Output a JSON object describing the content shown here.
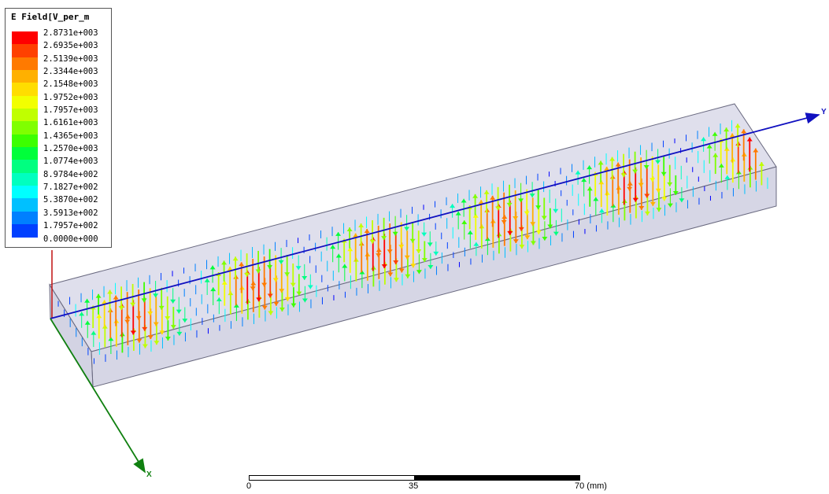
{
  "legend": {
    "title": "E Field[V_per_m",
    "labels": [
      "2.8731e+003",
      "2.6935e+003",
      "2.5139e+003",
      "2.3344e+003",
      "2.1548e+003",
      "1.9752e+003",
      "1.7957e+003",
      "1.6161e+003",
      "1.4365e+003",
      "1.2570e+003",
      "1.0774e+003",
      "8.9784e+002",
      "7.1827e+002",
      "5.3870e+002",
      "3.5913e+002",
      "1.7957e+002",
      "0.0000e+000"
    ],
    "colors": [
      "#ff0000",
      "#ff4000",
      "#ff7a00",
      "#ffb000",
      "#ffdd00",
      "#f2ff00",
      "#c0ff00",
      "#80ff00",
      "#3cff00",
      "#00ff3a",
      "#00ff80",
      "#00ffbf",
      "#00ffff",
      "#00c0ff",
      "#0080ff",
      "#0040ff",
      "#0000ff"
    ]
  },
  "axes": {
    "y_label": "Y",
    "x_label": "X",
    "y_color": "#1010c0",
    "x_color": "#108010",
    "z_color": "#c01010"
  },
  "scale_bar": {
    "labels": [
      "0",
      "35",
      "70 (mm)"
    ]
  },
  "colors": {
    "box_fill": "#b8b8d8",
    "box_edge": "#6a6a80"
  }
}
